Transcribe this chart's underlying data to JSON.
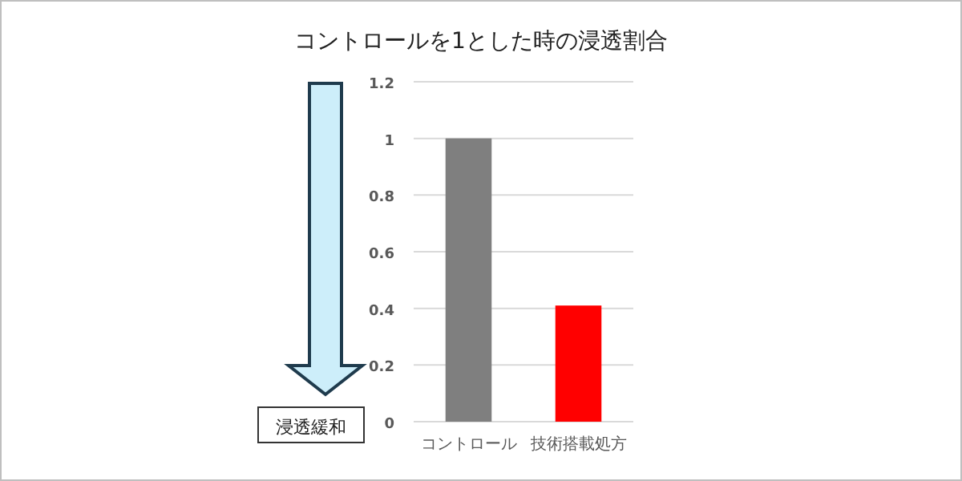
{
  "chart_data": {
    "type": "bar",
    "title": "コントロールを1とした時の浸透割合",
    "categories": [
      "コントロール",
      "技術搭載処方"
    ],
    "values": [
      1,
      0.41
    ],
    "colors": [
      "#7f7f7f",
      "#ff0000"
    ],
    "ylim": [
      0,
      1.2
    ],
    "yticks": [
      0,
      0.2,
      0.4,
      0.6,
      0.8,
      1,
      1.2
    ],
    "grid": "y",
    "annotations": [
      "浸透緩和"
    ]
  }
}
